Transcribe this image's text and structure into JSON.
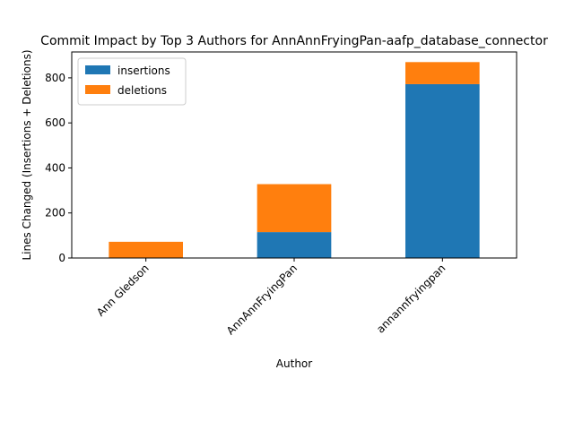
{
  "chart_data": {
    "type": "bar",
    "stacked": true,
    "title": "Commit Impact by Top 3 Authors for AnnAnnFryingPan-aafp_database_connector",
    "xlabel": "Author",
    "ylabel": "Lines Changed (Insertions + Deletions)",
    "categories": [
      "Ann Gledson",
      "AnnAnnFryingPan",
      "annannfryingpan"
    ],
    "series": [
      {
        "name": "insertions",
        "color": "#1f77b4",
        "values": [
          0,
          115,
          772
        ]
      },
      {
        "name": "deletions",
        "color": "#ff7f0e",
        "values": [
          72,
          213,
          98
        ]
      }
    ],
    "ylim": [
      0,
      915
    ],
    "yticks": [
      0,
      200,
      400,
      600,
      800
    ],
    "legend": "top-left",
    "grid": false
  }
}
